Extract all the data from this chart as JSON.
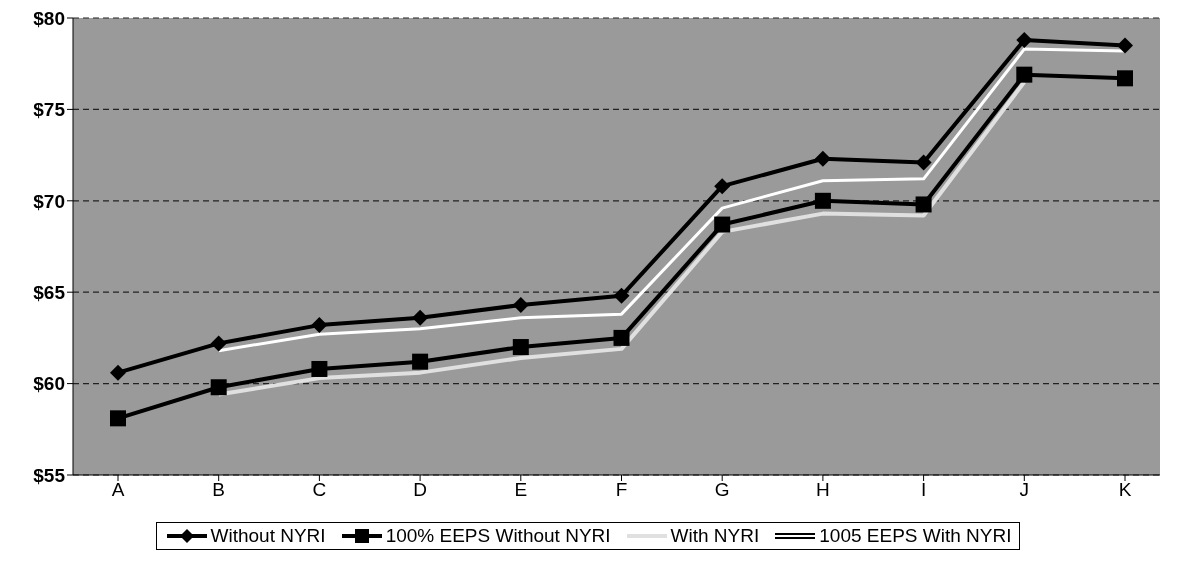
{
  "chart_data": {
    "type": "line",
    "categories": [
      "A",
      "B",
      "C",
      "D",
      "E",
      "F",
      "G",
      "H",
      "I",
      "J",
      "K"
    ],
    "series": [
      {
        "name": "Without NYRI",
        "color": "#000000",
        "marker": "diamond",
        "values": [
          60.6,
          62.2,
          63.2,
          63.6,
          64.3,
          64.8,
          70.8,
          72.3,
          72.1,
          78.8,
          78.5
        ]
      },
      {
        "name": "100% EEPS Without NYRI",
        "color": "#000000",
        "marker": "square",
        "values": [
          58.1,
          59.8,
          60.8,
          61.2,
          62.0,
          62.5,
          68.7,
          70.0,
          69.8,
          76.9,
          76.7
        ]
      },
      {
        "name": "With NYRI",
        "color": "#e0e0e0",
        "marker": "none",
        "values": [
          null,
          59.4,
          60.3,
          60.6,
          61.4,
          61.9,
          68.3,
          69.3,
          69.2,
          76.5,
          null
        ]
      },
      {
        "name": "1005 EEPS With NYRI",
        "color": "#ffffff",
        "marker": "none",
        "values": [
          null,
          61.8,
          62.7,
          63.0,
          63.6,
          63.8,
          69.6,
          71.1,
          71.2,
          78.3,
          78.2
        ]
      }
    ],
    "ylim": [
      55,
      80
    ],
    "yticks": [
      {
        "value": 55,
        "label": "$55"
      },
      {
        "value": 60,
        "label": "$60"
      },
      {
        "value": 65,
        "label": "$65"
      },
      {
        "value": 70,
        "label": "$70"
      },
      {
        "value": 75,
        "label": "$75"
      },
      {
        "value": 80,
        "label": "$80"
      }
    ],
    "grid": "y",
    "legend": "bottom"
  }
}
